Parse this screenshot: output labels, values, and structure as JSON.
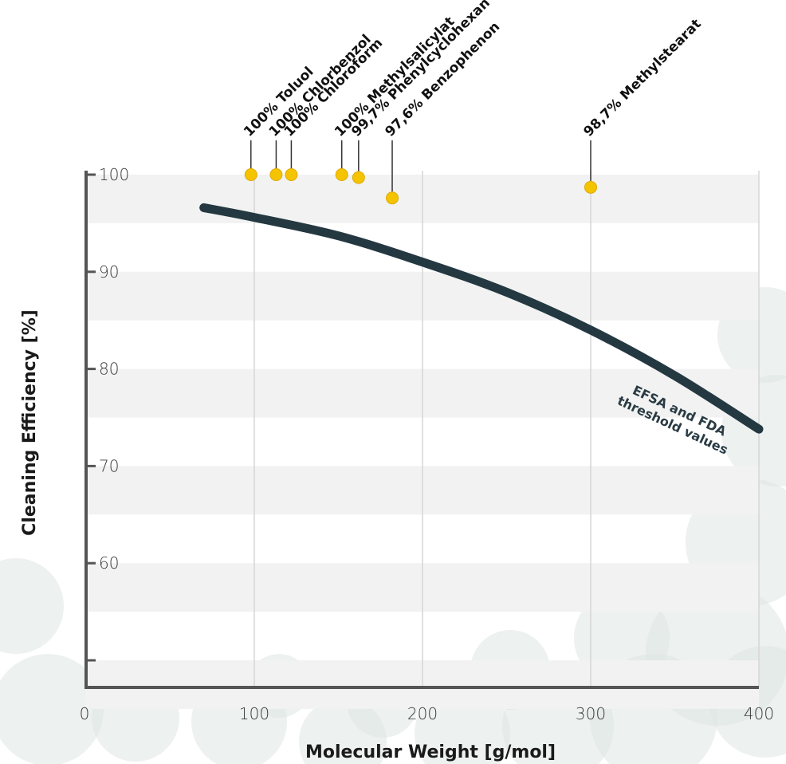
{
  "colors": {
    "curve": "#243842",
    "point": "#f5c400",
    "point_stroke": "#e0a800",
    "band": "#f1f2f1",
    "grid": "#d6d6d6",
    "axis": "#555555",
    "background_pellet": "#dfe6e2"
  },
  "chart_data": {
    "type": "scatter",
    "xlabel": "Molecular Weight [g/mol]",
    "ylabel": "Cleaning Efficiency [%]",
    "xlim": [
      0,
      400
    ],
    "ylim": [
      47,
      100
    ],
    "x_ticks": [
      0,
      100,
      200,
      300,
      400
    ],
    "y_ticks": [
      100,
      90,
      80,
      70,
      60,
      50
    ],
    "y_tick_labels": [
      "100",
      "90",
      "80",
      "70",
      "60",
      ""
    ],
    "grid": "vertical",
    "series": [
      {
        "type": "scatter",
        "points": [
          {
            "x": 98,
            "y": 100,
            "label": "100% Toluol"
          },
          {
            "x": 113,
            "y": 100,
            "label": "100% Chlorbenzol"
          },
          {
            "x": 122,
            "y": 100,
            "label": "100% Chloroform"
          },
          {
            "x": 152,
            "y": 100,
            "label": "100% Methylsalicylat"
          },
          {
            "x": 162,
            "y": 99.7,
            "label": "99,7% Phenylcyclohexan"
          },
          {
            "x": 182,
            "y": 97.6,
            "label": "97,6% Benzophenon"
          },
          {
            "x": 300,
            "y": 98.7,
            "label": "98,7% Methylstearat"
          }
        ]
      },
      {
        "type": "line",
        "label_lines": [
          "EFSA and FDA",
          "threshold values"
        ],
        "x": [
          70,
          100,
          150,
          200,
          250,
          300,
          350,
          400
        ],
        "y": [
          96.6,
          95.6,
          93.7,
          91.0,
          87.9,
          84.0,
          79.3,
          73.8
        ]
      }
    ]
  }
}
